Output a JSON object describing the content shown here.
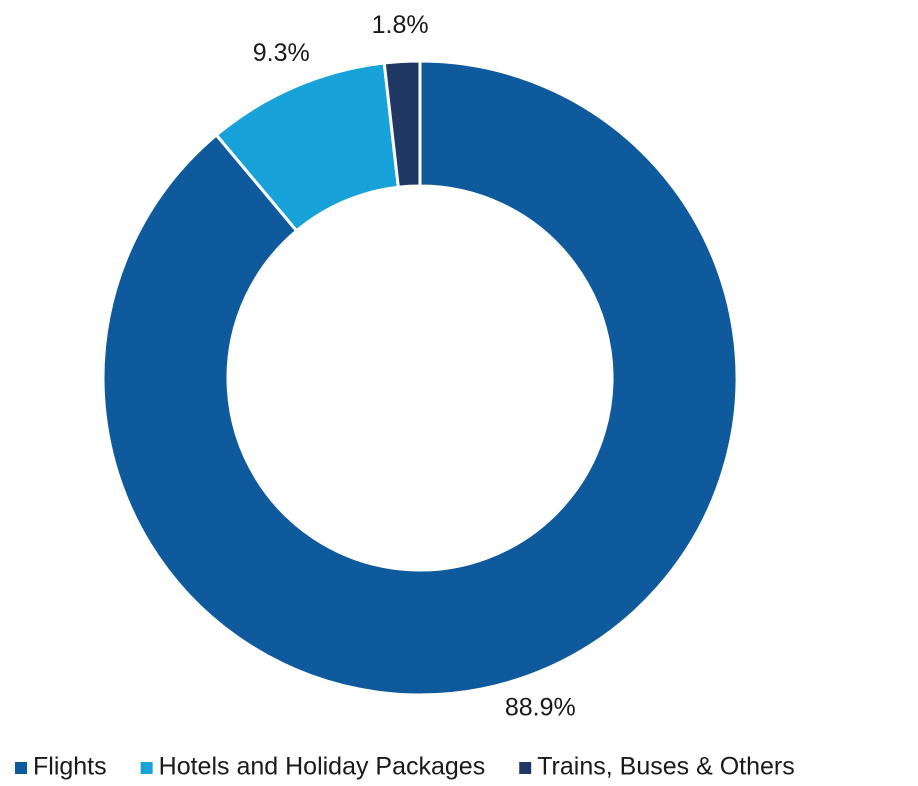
{
  "chart_data": {
    "type": "donut",
    "categories": [
      "Flights",
      "Hotels and Holiday Packages",
      "Trains, Buses & Others"
    ],
    "values": [
      88.9,
      9.3,
      1.8
    ],
    "value_labels": [
      "88.9%",
      "9.3%",
      "1.8%"
    ],
    "colors": [
      "#0e5a9c",
      "#17a3d9",
      "#1f3864"
    ],
    "legend": "bottom"
  }
}
